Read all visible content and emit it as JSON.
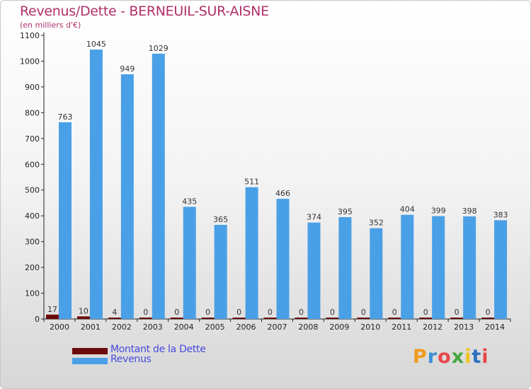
{
  "chart_data": {
    "type": "bar",
    "title": "Revenus/Dette - BERNEUIL-SUR-AISNE",
    "subtitle": "(en milliers d'€)",
    "categories": [
      "2000",
      "2001",
      "2002",
      "2003",
      "2004",
      "2005",
      "2006",
      "2007",
      "2008",
      "2009",
      "2010",
      "2011",
      "2012",
      "2013",
      "2014"
    ],
    "series": [
      {
        "name": "Montant de la Dette",
        "color": "#6b0a0a",
        "values": [
          17,
          10,
          4,
          0,
          0,
          0,
          0,
          0,
          0,
          0,
          0,
          0,
          0,
          0,
          0
        ]
      },
      {
        "name": "Revenus",
        "color": "#4aa0e6",
        "values": [
          763,
          1045,
          949,
          1029,
          435,
          365,
          511,
          466,
          374,
          395,
          352,
          404,
          399,
          398,
          383
        ]
      }
    ],
    "ylim": [
      0,
      1100
    ],
    "yticks": [
      0,
      100,
      200,
      300,
      400,
      500,
      600,
      700,
      800,
      900,
      1000,
      1100
    ],
    "grid": false,
    "legend_position": "bottom-left"
  },
  "logo": {
    "text": "Proxiti",
    "colors": [
      "#f39a1c",
      "#3d8fd6",
      "#e8474a",
      "#45a63f",
      "#f0c419",
      "#2e6fc0",
      "#e8474a"
    ]
  }
}
